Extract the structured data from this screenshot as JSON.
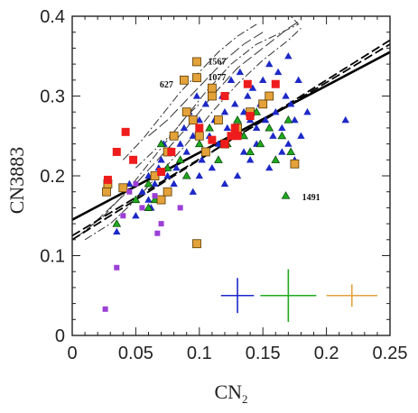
{
  "chart_data": {
    "type": "scatter",
    "xlabel": "CN",
    "xlabel_sub": "2",
    "ylabel": "CN3883",
    "xlim": [
      0,
      0.25
    ],
    "ylim": [
      0,
      0.4
    ],
    "x_ticks": [
      "0",
      "0.05",
      "0.1",
      "0.15",
      "0.2",
      "0.25"
    ],
    "y_ticks": [
      "0",
      "0.1",
      "0.2",
      "0.3",
      "0.4"
    ],
    "grid": false,
    "colors": {
      "blue": "#1c28c8",
      "green": "#1faa1f",
      "orange": "#e3a23a",
      "red": "#ee1c1c",
      "purple": "#9b3fd6",
      "axis": "#222222"
    },
    "annotations": [
      {
        "text": "1567",
        "x": 0.104,
        "y": 0.343
      },
      {
        "text": "1077",
        "x": 0.104,
        "y": 0.323
      },
      {
        "text": "627",
        "x": 0.066,
        "y": 0.314
      },
      {
        "text": "1491",
        "x": 0.178,
        "y": 0.173
      }
    ],
    "series": [
      {
        "marker": "triangle",
        "color": "blue",
        "points": [
          [
            0.035,
            0.13
          ],
          [
            0.045,
            0.19
          ],
          [
            0.05,
            0.15
          ],
          [
            0.055,
            0.18
          ],
          [
            0.06,
            0.2
          ],
          [
            0.062,
            0.16
          ],
          [
            0.065,
            0.19
          ],
          [
            0.068,
            0.21
          ],
          [
            0.07,
            0.22
          ],
          [
            0.072,
            0.24
          ],
          [
            0.075,
            0.2
          ],
          [
            0.078,
            0.23
          ],
          [
            0.08,
            0.25
          ],
          [
            0.082,
            0.21
          ],
          [
            0.085,
            0.24
          ],
          [
            0.088,
            0.26
          ],
          [
            0.09,
            0.23
          ],
          [
            0.092,
            0.28
          ],
          [
            0.095,
            0.25
          ],
          [
            0.098,
            0.3
          ],
          [
            0.1,
            0.27
          ],
          [
            0.102,
            0.22
          ],
          [
            0.105,
            0.29
          ],
          [
            0.108,
            0.25
          ],
          [
            0.11,
            0.31
          ],
          [
            0.112,
            0.27
          ],
          [
            0.115,
            0.24
          ],
          [
            0.118,
            0.3
          ],
          [
            0.12,
            0.28
          ],
          [
            0.122,
            0.26
          ],
          [
            0.125,
            0.32
          ],
          [
            0.128,
            0.29
          ],
          [
            0.13,
            0.25
          ],
          [
            0.132,
            0.33
          ],
          [
            0.135,
            0.28
          ],
          [
            0.138,
            0.3
          ],
          [
            0.14,
            0.27
          ],
          [
            0.142,
            0.31
          ],
          [
            0.145,
            0.26
          ],
          [
            0.148,
            0.29
          ],
          [
            0.15,
            0.32
          ],
          [
            0.152,
            0.27
          ],
          [
            0.155,
            0.3
          ],
          [
            0.158,
            0.25
          ],
          [
            0.16,
            0.28
          ],
          [
            0.162,
            0.33
          ],
          [
            0.165,
            0.26
          ],
          [
            0.168,
            0.3
          ],
          [
            0.17,
            0.24
          ],
          [
            0.172,
            0.29
          ],
          [
            0.175,
            0.27
          ],
          [
            0.178,
            0.32
          ],
          [
            0.18,
            0.25
          ],
          [
            0.185,
            0.28
          ],
          [
            0.215,
            0.27
          ],
          [
            0.13,
            0.2
          ],
          [
            0.14,
            0.22
          ],
          [
            0.12,
            0.19
          ],
          [
            0.11,
            0.21
          ],
          [
            0.155,
            0.21
          ],
          [
            0.165,
            0.23
          ],
          [
            0.175,
            0.22
          ],
          [
            0.1,
            0.2
          ],
          [
            0.095,
            0.18
          ],
          [
            0.145,
            0.24
          ],
          [
            0.135,
            0.23
          ],
          [
            0.155,
            0.34
          ],
          [
            0.17,
            0.35
          ],
          [
            0.06,
            0.17
          ],
          [
            0.08,
            0.19
          ]
        ]
      },
      {
        "marker": "triangle",
        "color": "green",
        "points": [
          [
            0.035,
            0.14
          ],
          [
            0.05,
            0.17
          ],
          [
            0.06,
            0.19
          ],
          [
            0.065,
            0.17
          ],
          [
            0.07,
            0.24
          ],
          [
            0.075,
            0.21
          ],
          [
            0.085,
            0.22
          ],
          [
            0.09,
            0.2
          ],
          [
            0.1,
            0.24
          ],
          [
            0.108,
            0.26
          ],
          [
            0.115,
            0.22
          ],
          [
            0.122,
            0.24
          ],
          [
            0.13,
            0.27
          ],
          [
            0.135,
            0.25
          ],
          [
            0.14,
            0.23
          ],
          [
            0.145,
            0.28
          ],
          [
            0.148,
            0.24
          ],
          [
            0.155,
            0.26
          ],
          [
            0.16,
            0.22
          ],
          [
            0.165,
            0.25
          ],
          [
            0.17,
            0.27
          ],
          [
            0.172,
            0.23
          ],
          [
            0.168,
            0.175
          ],
          [
            0.06,
            0.16
          ]
        ]
      },
      {
        "marker": "square",
        "color": "orange",
        "points": [
          [
            0.027,
            0.18
          ],
          [
            0.028,
            0.19
          ],
          [
            0.04,
            0.185
          ],
          [
            0.065,
            0.2
          ],
          [
            0.07,
            0.17
          ],
          [
            0.075,
            0.23
          ],
          [
            0.075,
            0.18
          ],
          [
            0.08,
            0.25
          ],
          [
            0.09,
            0.28
          ],
          [
            0.095,
            0.27
          ],
          [
            0.098,
            0.115
          ],
          [
            0.1,
            0.25
          ],
          [
            0.105,
            0.23
          ],
          [
            0.11,
            0.3
          ],
          [
            0.115,
            0.27
          ],
          [
            0.12,
            0.24
          ],
          [
            0.13,
            0.26
          ],
          [
            0.14,
            0.28
          ],
          [
            0.15,
            0.29
          ],
          [
            0.155,
            0.3
          ],
          [
            0.175,
            0.215
          ],
          [
            0.098,
            0.343
          ],
          [
            0.098,
            0.323
          ],
          [
            0.088,
            0.32
          ],
          [
            0.11,
            0.31
          ]
        ]
      },
      {
        "marker": "square",
        "color": "red",
        "points": [
          [
            0.028,
            0.195
          ],
          [
            0.035,
            0.23
          ],
          [
            0.042,
            0.255
          ],
          [
            0.048,
            0.22
          ],
          [
            0.07,
            0.205
          ],
          [
            0.078,
            0.23
          ],
          [
            0.1,
            0.26
          ],
          [
            0.11,
            0.245
          ],
          [
            0.12,
            0.24
          ],
          [
            0.125,
            0.25
          ],
          [
            0.13,
            0.25
          ],
          [
            0.138,
            0.315
          ],
          [
            0.14,
            0.275
          ],
          [
            0.16,
            0.315
          ],
          [
            0.12,
            0.3
          ],
          [
            0.128,
            0.26
          ]
        ]
      },
      {
        "marker": "square",
        "color": "purple",
        "points": [
          [
            0.026,
            0.033
          ],
          [
            0.035,
            0.085
          ],
          [
            0.04,
            0.15
          ],
          [
            0.045,
            0.18
          ],
          [
            0.05,
            0.19
          ],
          [
            0.055,
            0.16
          ],
          [
            0.065,
            0.175
          ],
          [
            0.067,
            0.128
          ],
          [
            0.07,
            0.14
          ],
          [
            0.085,
            0.16
          ]
        ]
      }
    ],
    "fit_lines": [
      {
        "style": "solid",
        "width": 2.6,
        "points": [
          [
            0,
            0.145
          ],
          [
            0.25,
            0.355
          ]
        ]
      },
      {
        "style": "dashed",
        "width": 1.8,
        "points": [
          [
            0,
            0.12
          ],
          [
            0.25,
            0.37
          ]
        ]
      },
      {
        "style": "dashed",
        "width": 1.8,
        "points": [
          [
            0,
            0.125
          ],
          [
            0.25,
            0.365
          ]
        ]
      }
    ],
    "model_tracks": [
      {
        "style": "dashdot",
        "points": [
          [
            0.005,
            0.125
          ],
          [
            0.025,
            0.15
          ],
          [
            0.045,
            0.185
          ],
          [
            0.065,
            0.225
          ],
          [
            0.085,
            0.265
          ],
          [
            0.105,
            0.305
          ],
          [
            0.125,
            0.34
          ],
          [
            0.145,
            0.365
          ],
          [
            0.165,
            0.38
          ],
          [
            0.178,
            0.39
          ],
          [
            0.172,
            0.4
          ]
        ]
      },
      {
        "style": "longdash",
        "points": [
          [
            0.01,
            0.13
          ],
          [
            0.03,
            0.16
          ],
          [
            0.05,
            0.19
          ],
          [
            0.07,
            0.225
          ],
          [
            0.09,
            0.26
          ],
          [
            0.11,
            0.3
          ],
          [
            0.13,
            0.335
          ],
          [
            0.15,
            0.36
          ],
          [
            0.17,
            0.385
          ],
          [
            0.18,
            0.395
          ]
        ]
      },
      {
        "style": "dashdot",
        "points": [
          [
            0.01,
            0.12
          ],
          [
            0.03,
            0.14
          ],
          [
            0.05,
            0.17
          ],
          [
            0.07,
            0.205
          ],
          [
            0.09,
            0.24
          ],
          [
            0.11,
            0.28
          ],
          [
            0.13,
            0.315
          ],
          [
            0.15,
            0.345
          ],
          [
            0.17,
            0.37
          ],
          [
            0.18,
            0.385
          ]
        ]
      },
      {
        "style": "dashdot",
        "points": [
          [
            0.04,
            0.22
          ],
          [
            0.055,
            0.245
          ],
          [
            0.07,
            0.275
          ],
          [
            0.085,
            0.305
          ],
          [
            0.1,
            0.33
          ],
          [
            0.115,
            0.355
          ],
          [
            0.13,
            0.375
          ],
          [
            0.145,
            0.39
          ]
        ]
      },
      {
        "style": "longdash",
        "points": [
          [
            0.06,
            0.25
          ],
          [
            0.075,
            0.27
          ],
          [
            0.09,
            0.295
          ],
          [
            0.105,
            0.32
          ],
          [
            0.12,
            0.345
          ],
          [
            0.135,
            0.365
          ],
          [
            0.15,
            0.38
          ]
        ]
      },
      {
        "style": "dashdot",
        "points": [
          [
            0.05,
            0.21
          ],
          [
            0.06,
            0.225
          ],
          [
            0.07,
            0.24
          ],
          [
            0.08,
            0.255
          ],
          [
            0.09,
            0.275
          ],
          [
            0.1,
            0.29
          ]
        ]
      }
    ],
    "error_bars": [
      {
        "color": "blue",
        "x": 0.13,
        "y": 0.05,
        "dx": 0.013,
        "dy": 0.022
      },
      {
        "color": "green",
        "x": 0.17,
        "y": 0.05,
        "dx": 0.022,
        "dy": 0.033
      },
      {
        "color": "orange",
        "x": 0.22,
        "y": 0.05,
        "dx": 0.02,
        "dy": 0.014
      }
    ]
  }
}
